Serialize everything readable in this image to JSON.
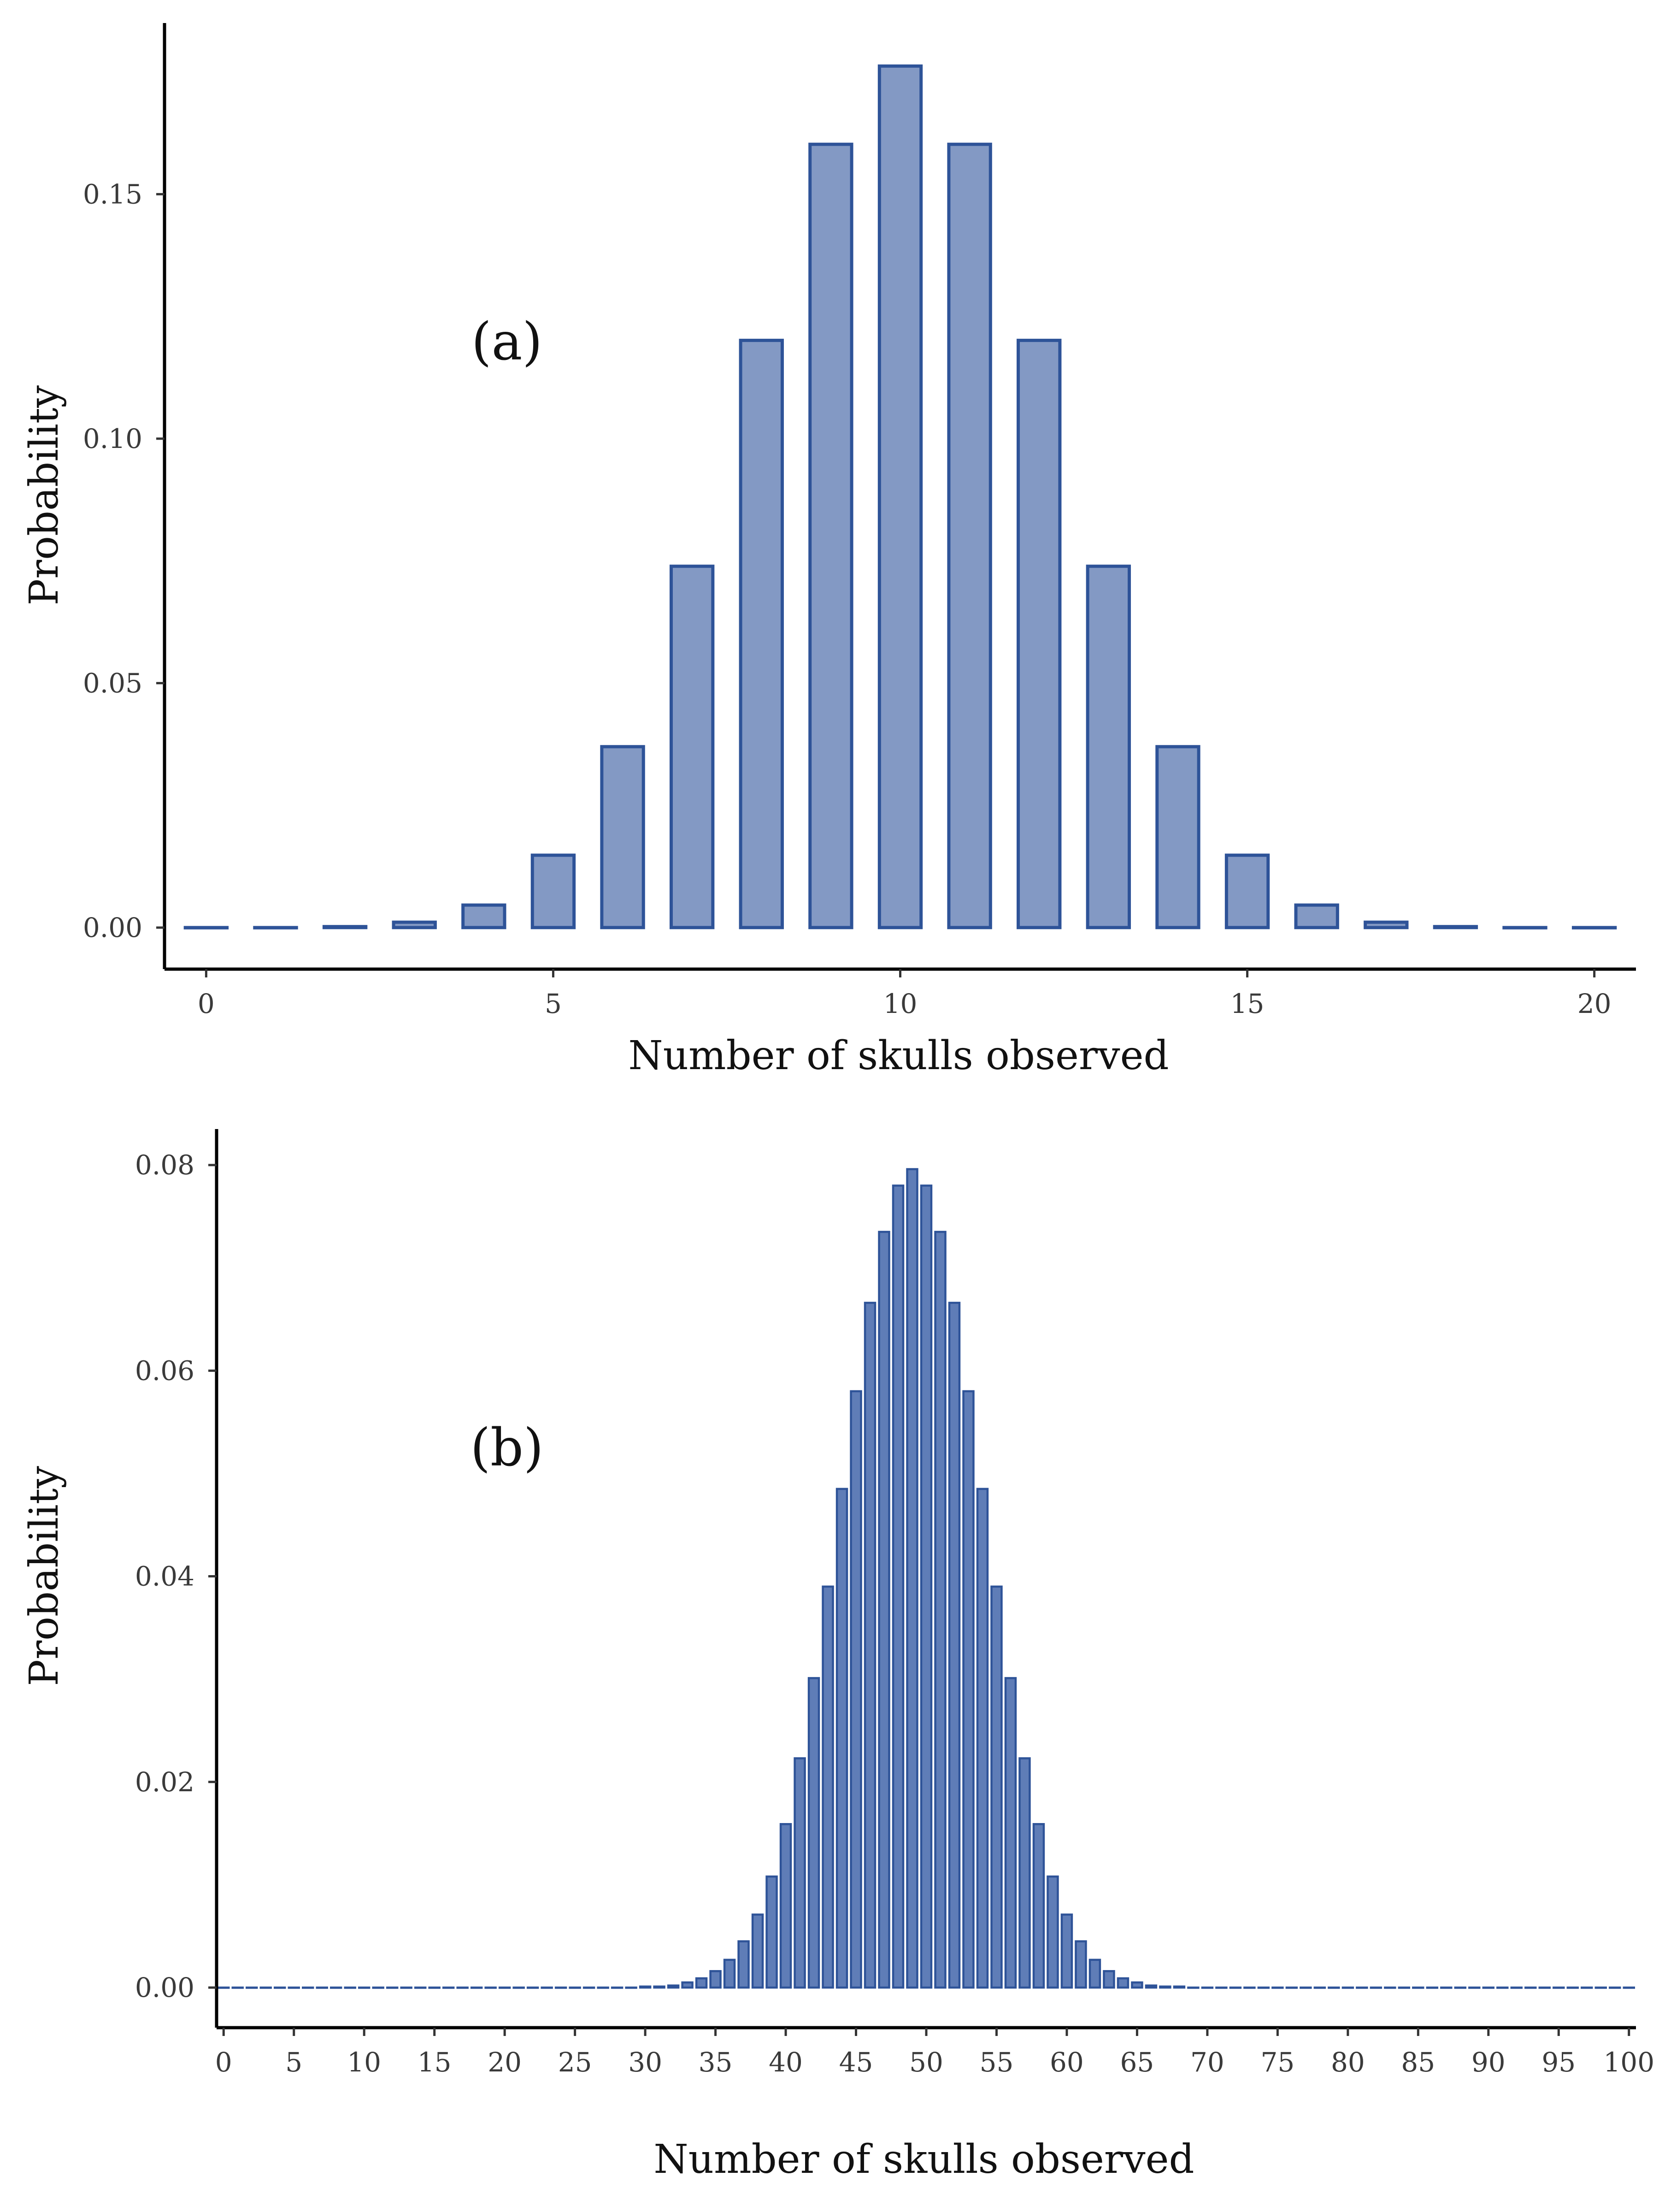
{
  "chart_data": [
    {
      "type": "bar",
      "panel_label": "(a)",
      "xlabel": "Number of skulls observed",
      "ylabel": "Probability",
      "x": [
        0,
        1,
        2,
        3,
        4,
        5,
        6,
        7,
        8,
        9,
        10,
        11,
        12,
        13,
        14,
        15,
        16,
        17,
        18,
        19,
        20
      ],
      "values": [
        0.0,
        0.0,
        0.0002,
        0.0011,
        0.0046,
        0.0148,
        0.037,
        0.0739,
        0.1201,
        0.1602,
        0.1762,
        0.1602,
        0.1201,
        0.0739,
        0.037,
        0.0148,
        0.0046,
        0.0011,
        0.0002,
        0.0,
        0.0
      ],
      "xlim": [
        -0.6,
        20.6
      ],
      "ylim": [
        -0.0085,
        0.185
      ],
      "xticks": [
        0,
        5,
        10,
        15,
        20
      ],
      "yticks": [
        0,
        0.05,
        0.1,
        0.15
      ],
      "ytick_labels": [
        "0.00",
        "0.05",
        "0.10",
        "0.15"
      ],
      "grid": false,
      "bar_fill": "#8399c4",
      "bar_stroke": "#2e5398"
    },
    {
      "type": "bar",
      "panel_label": "(b)",
      "xlabel": "Number of skulls observed",
      "ylabel": "Probability",
      "x": [
        0,
        1,
        2,
        3,
        4,
        5,
        6,
        7,
        8,
        9,
        10,
        11,
        12,
        13,
        14,
        15,
        16,
        17,
        18,
        19,
        20,
        21,
        22,
        23,
        24,
        25,
        26,
        27,
        28,
        29,
        30,
        31,
        32,
        33,
        34,
        35,
        36,
        37,
        38,
        39,
        40,
        41,
        42,
        43,
        44,
        45,
        46,
        47,
        48,
        49,
        50,
        51,
        52,
        53,
        54,
        55,
        56,
        57,
        58,
        59,
        60,
        61,
        62,
        63,
        64,
        65,
        66,
        67,
        68,
        69,
        70,
        71,
        72,
        73,
        74,
        75,
        76,
        77,
        78,
        79,
        80,
        81,
        82,
        83,
        84,
        85,
        86,
        87,
        88,
        89,
        90,
        91,
        92,
        93,
        94,
        95,
        96,
        97,
        98,
        99,
        100
      ],
      "values": [
        0,
        0,
        0,
        0,
        0,
        0,
        0,
        0,
        0,
        0,
        0,
        0,
        0,
        0,
        0,
        0,
        0,
        0,
        0,
        0,
        0,
        0,
        0,
        0,
        0,
        0,
        0,
        0,
        0,
        0.0,
        0.0001,
        0.0001,
        0.0002,
        0.0005,
        0.0009,
        0.0016,
        0.0027,
        0.0045,
        0.0071,
        0.0108,
        0.0159,
        0.0223,
        0.0301,
        0.039,
        0.0485,
        0.058,
        0.0666,
        0.0735,
        0.078,
        0.0796,
        0.078,
        0.0735,
        0.0666,
        0.058,
        0.0485,
        0.039,
        0.0301,
        0.0223,
        0.0159,
        0.0108,
        0.0071,
        0.0045,
        0.0027,
        0.0016,
        0.0009,
        0.0005,
        0.0002,
        0.0001,
        0.0001,
        0.0,
        0,
        0,
        0,
        0,
        0,
        0,
        0,
        0,
        0,
        0,
        0,
        0,
        0,
        0,
        0,
        0,
        0,
        0,
        0,
        0,
        0,
        0,
        0,
        0,
        0,
        0,
        0,
        0,
        0,
        0,
        0
      ],
      "xlim": [
        -0.5,
        100.5
      ],
      "ylim": [
        -0.0039,
        0.0835
      ],
      "xticks": [
        0,
        5,
        10,
        15,
        20,
        25,
        30,
        35,
        40,
        45,
        50,
        55,
        60,
        65,
        70,
        75,
        80,
        85,
        90,
        95,
        100
      ],
      "yticks": [
        0,
        0.02,
        0.04,
        0.06,
        0.08
      ],
      "ytick_labels": [
        "0.00",
        "0.02",
        "0.04",
        "0.06",
        "0.08"
      ],
      "grid": false,
      "bar_fill": "#5f7db7",
      "bar_stroke": "#2e5398"
    }
  ]
}
